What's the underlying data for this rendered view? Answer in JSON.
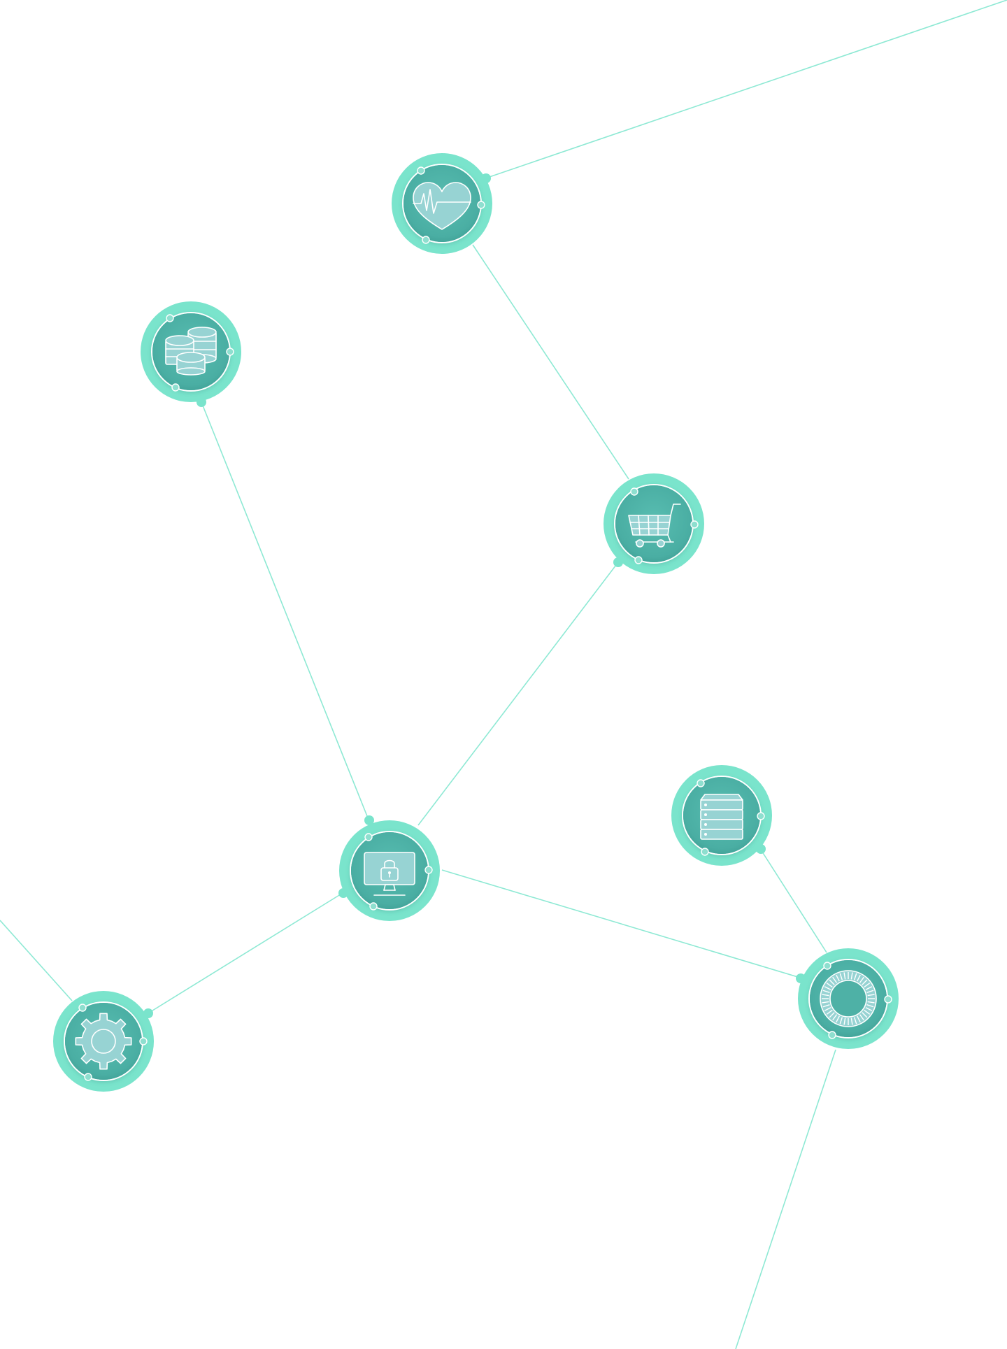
{
  "diagram": {
    "type": "network",
    "colors": {
      "edge": "#8ee9d4",
      "ring": "#7ae4cc",
      "node": "#4eb1a6",
      "icon": "#97d3d3",
      "background": "#ffffff"
    },
    "nodes": [
      {
        "id": "health",
        "icon": "heart-pulse-icon"
      },
      {
        "id": "coins",
        "icon": "coin-stack-icon"
      },
      {
        "id": "cart",
        "icon": "shopping-cart-icon"
      },
      {
        "id": "server",
        "icon": "server-rack-icon"
      },
      {
        "id": "security",
        "icon": "monitor-lock-icon"
      },
      {
        "id": "settings",
        "icon": "gear-icon"
      },
      {
        "id": "target",
        "icon": "target-dial-icon"
      }
    ],
    "edges": [
      {
        "from": "health",
        "to": "offscreen-top-right"
      },
      {
        "from": "health",
        "to": "cart"
      },
      {
        "from": "coins",
        "to": "security"
      },
      {
        "from": "cart",
        "to": "security"
      },
      {
        "from": "security",
        "to": "settings"
      },
      {
        "from": "security",
        "to": "target"
      },
      {
        "from": "server",
        "to": "target"
      },
      {
        "from": "settings",
        "to": "offscreen-left"
      },
      {
        "from": "target",
        "to": "offscreen-bottom"
      }
    ]
  }
}
